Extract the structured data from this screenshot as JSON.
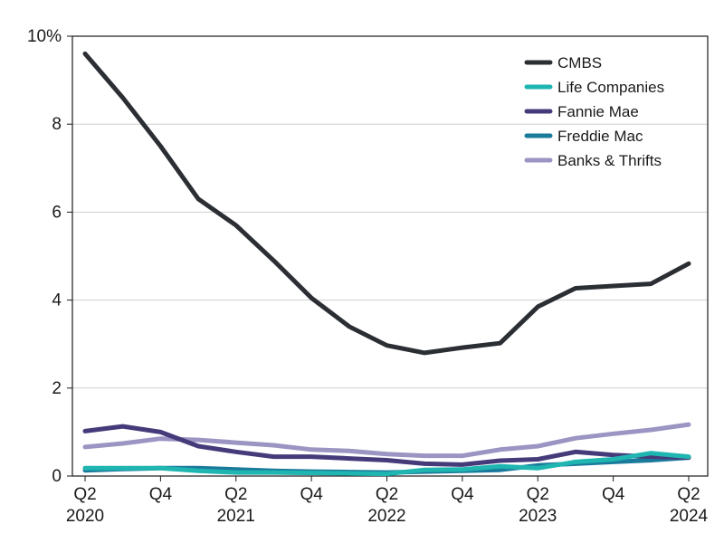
{
  "chart_data": {
    "type": "line",
    "x": [
      "Q2 2020",
      "Q3 2020",
      "Q4 2020",
      "Q1 2021",
      "Q2 2021",
      "Q3 2021",
      "Q4 2021",
      "Q1 2022",
      "Q2 2022",
      "Q3 2022",
      "Q4 2022",
      "Q1 2023",
      "Q2 2023",
      "Q3 2023",
      "Q4 2023",
      "Q1 2024",
      "Q2 2024"
    ],
    "x_ticks": [
      {
        "index": 0,
        "line1": "Q2",
        "line2": "2020"
      },
      {
        "index": 2,
        "line1": "Q4",
        "line2": ""
      },
      {
        "index": 4,
        "line1": "Q2",
        "line2": "2021"
      },
      {
        "index": 6,
        "line1": "Q4",
        "line2": ""
      },
      {
        "index": 8,
        "line1": "Q2",
        "line2": "2022"
      },
      {
        "index": 10,
        "line1": "Q4",
        "line2": ""
      },
      {
        "index": 12,
        "line1": "Q2",
        "line2": "2023"
      },
      {
        "index": 14,
        "line1": "Q4",
        "line2": ""
      },
      {
        "index": 16,
        "line1": "Q2",
        "line2": "2024"
      }
    ],
    "y_ticks": [
      {
        "value": 0,
        "label": "0"
      },
      {
        "value": 2,
        "label": "2"
      },
      {
        "value": 4,
        "label": "4"
      },
      {
        "value": 6,
        "label": "6"
      },
      {
        "value": 8,
        "label": "8"
      },
      {
        "value": 10,
        "label": "10%"
      }
    ],
    "ylim": [
      0,
      10
    ],
    "grid": "horizontal",
    "legend_position": "top-right",
    "title": "",
    "xlabel": "",
    "ylabel": "",
    "series": [
      {
        "name": "CMBS",
        "color": "#2b2f33",
        "values": [
          9.6,
          8.6,
          7.5,
          6.3,
          5.7,
          4.9,
          4.05,
          3.4,
          2.97,
          2.8,
          2.92,
          3.02,
          3.85,
          4.27,
          4.32,
          4.37,
          4.83
        ]
      },
      {
        "name": "Life Companies",
        "color": "#1fb5b0",
        "values": [
          0.18,
          0.18,
          0.18,
          0.12,
          0.08,
          0.08,
          0.07,
          0.06,
          0.05,
          0.14,
          0.15,
          0.22,
          0.18,
          0.32,
          0.38,
          0.52,
          0.44
        ]
      },
      {
        "name": "Fannie Mae",
        "color": "#463b7a",
        "values": [
          1.02,
          1.13,
          1.0,
          0.68,
          0.55,
          0.44,
          0.44,
          0.4,
          0.36,
          0.28,
          0.26,
          0.35,
          0.38,
          0.55,
          0.48,
          0.44,
          0.42
        ]
      },
      {
        "name": "Freddie Mac",
        "color": "#1a7a9c",
        "values": [
          0.13,
          0.16,
          0.18,
          0.18,
          0.15,
          0.12,
          0.1,
          0.09,
          0.08,
          0.1,
          0.12,
          0.14,
          0.24,
          0.28,
          0.32,
          0.36,
          0.42
        ]
      },
      {
        "name": "Banks & Thrifts",
        "color": "#9a95c2",
        "values": [
          0.66,
          0.74,
          0.85,
          0.82,
          0.76,
          0.7,
          0.6,
          0.57,
          0.5,
          0.46,
          0.46,
          0.6,
          0.68,
          0.86,
          0.96,
          1.05,
          1.17
        ]
      }
    ]
  }
}
